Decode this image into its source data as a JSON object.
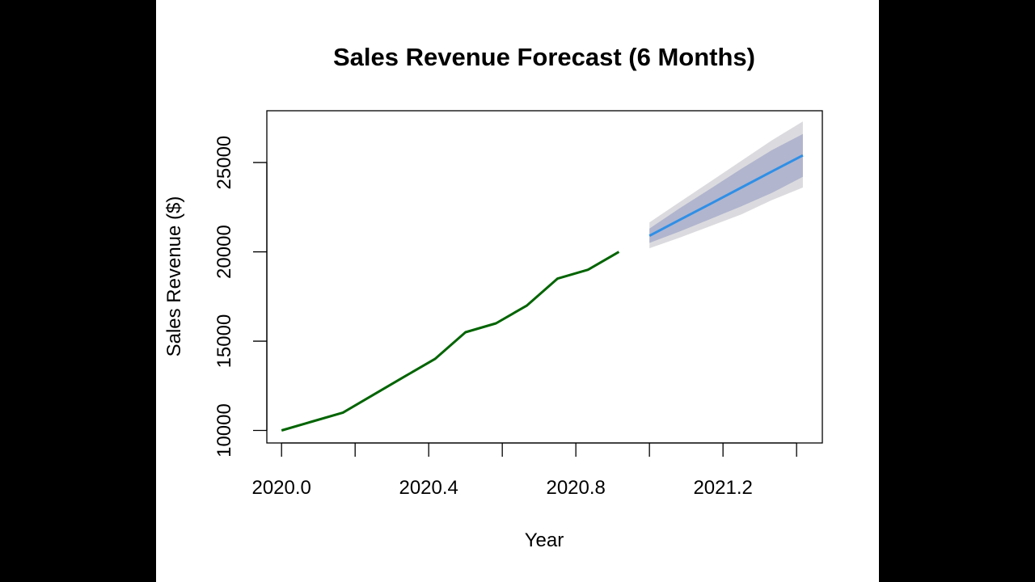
{
  "chart_data": {
    "type": "line",
    "title": "Sales Revenue Forecast (6 Months)",
    "xlabel": "Year",
    "ylabel": "Sales Revenue ($)",
    "xlim": [
      2019.96,
      2021.47
    ],
    "ylim": [
      9300,
      27900
    ],
    "x_ticks": [
      2020.0,
      2020.2,
      2020.4,
      2020.6,
      2020.8,
      2021.0,
      2021.2,
      2021.4
    ],
    "x_tick_labels": [
      "2020.0",
      "",
      "2020.4",
      "",
      "2020.8",
      "",
      "2021.2",
      ""
    ],
    "y_ticks": [
      10000,
      15000,
      20000,
      25000
    ],
    "y_tick_labels": [
      "10000",
      "15000",
      "20000",
      "25000"
    ],
    "grid": false,
    "colors": {
      "history": "#006400",
      "forecast": "#2f8fe6",
      "band80": "#b1b5ce",
      "band95": "#dbdbdf"
    },
    "series": [
      {
        "kind": "history",
        "x": [
          2020.0,
          2020.083,
          2020.167,
          2020.25,
          2020.333,
          2020.417,
          2020.5,
          2020.583,
          2020.667,
          2020.75,
          2020.833,
          2020.917
        ],
        "values": [
          10000,
          10500,
          11000,
          12000,
          13000,
          14000,
          15500,
          16000,
          17000,
          18500,
          19000,
          20000
        ]
      },
      {
        "kind": "forecast",
        "x": [
          2021.0,
          2021.083,
          2021.167,
          2021.25,
          2021.333,
          2021.417
        ],
        "values": [
          20900,
          21800,
          22700,
          23600,
          24500,
          25400
        ],
        "lo80": [
          20500,
          21150,
          21850,
          22550,
          23300,
          24200
        ],
        "hi80": [
          21300,
          22450,
          23550,
          24650,
          25700,
          26600
        ],
        "lo95": [
          20200,
          20800,
          21450,
          22100,
          22900,
          23600
        ],
        "hi95": [
          21650,
          22800,
          23950,
          25100,
          26250,
          27300
        ]
      }
    ]
  }
}
